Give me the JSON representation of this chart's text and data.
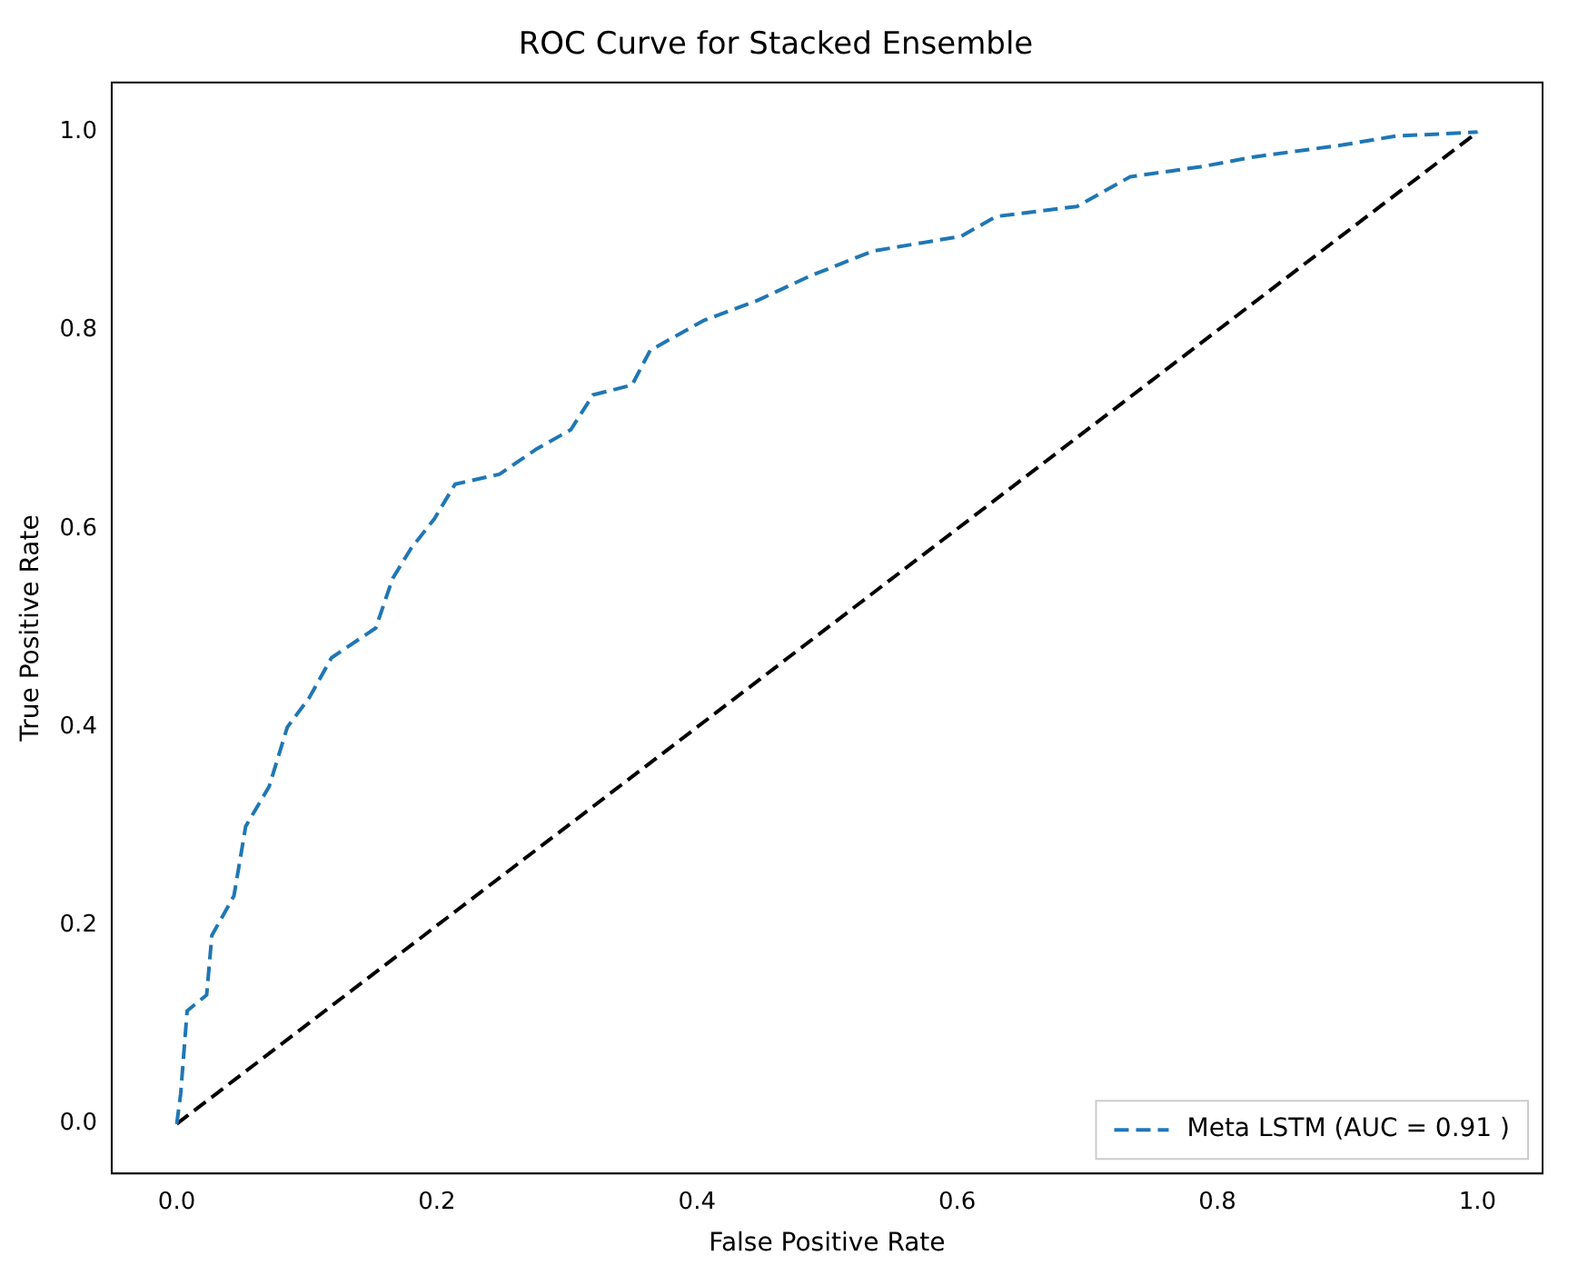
{
  "chart_data": {
    "type": "line",
    "title": "ROC Curve for Stacked Ensemble",
    "xlabel": "False Positive Rate",
    "ylabel": "True Positive Rate",
    "series": [
      {
        "name": "Meta LSTM (AUC = 0.91 )",
        "color": "#1f77b4",
        "line_style": "dashed",
        "x": [
          0,
          0.003,
          0.008,
          0.023,
          0.027,
          0.044,
          0.053,
          0.071,
          0.085,
          0.102,
          0.119,
          0.153,
          0.166,
          0.18,
          0.198,
          0.214,
          0.248,
          0.276,
          0.303,
          0.32,
          0.35,
          0.364,
          0.405,
          0.446,
          0.487,
          0.535,
          0.603,
          0.63,
          0.692,
          0.733,
          0.787,
          0.828,
          0.896,
          0.937,
          1
        ],
        "values": [
          0,
          0.03,
          0.114,
          0.13,
          0.19,
          0.23,
          0.3,
          0.34,
          0.4,
          0.43,
          0.47,
          0.5,
          0.55,
          0.58,
          0.61,
          0.645,
          0.655,
          0.68,
          0.7,
          0.735,
          0.745,
          0.78,
          0.81,
          0.83,
          0.855,
          0.88,
          0.895,
          0.915,
          0.925,
          0.955,
          0.965,
          0.975,
          0.987,
          0.996,
          1
        ]
      },
      {
        "color": "#000000",
        "line_style": "dashed",
        "x": [
          0,
          1
        ],
        "values": [
          0,
          1
        ]
      }
    ],
    "xlim": [
      -0.05,
      1.05
    ],
    "ylim": [
      -0.05,
      1.05
    ],
    "xticks": [
      {
        "value": 0,
        "label": "0.0"
      },
      0.2,
      0.4,
      0.6,
      0.8,
      {
        "value": 1,
        "label": "1.0"
      }
    ],
    "yticks": [
      {
        "value": 0,
        "label": "0.0"
      },
      0.2,
      0.4,
      0.6,
      0.8,
      {
        "value": 1,
        "label": "1.0"
      }
    ],
    "grid": false,
    "legend": "bottom right",
    "marker": "none"
  }
}
